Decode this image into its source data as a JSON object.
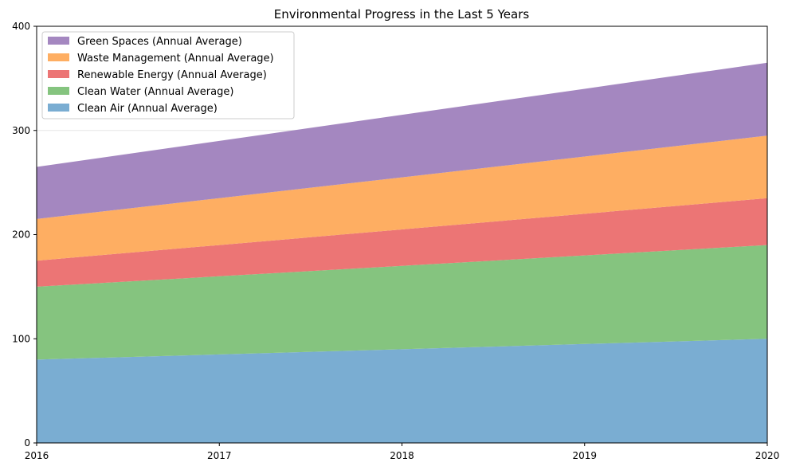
{
  "chart_data": {
    "type": "area",
    "stacked": true,
    "title": "Environmental Progress in the Last 5 Years",
    "xlabel": "",
    "ylabel": "",
    "x": [
      2016,
      2017,
      2018,
      2019,
      2020
    ],
    "x_tick_labels": [
      "2016",
      "2017",
      "2018",
      "2019",
      "2020"
    ],
    "y_ticks": [
      0,
      100,
      200,
      300,
      400
    ],
    "y_tick_labels": [
      "0",
      "100",
      "200",
      "300",
      "400"
    ],
    "xlim": [
      2016,
      2020
    ],
    "ylim": [
      0,
      400
    ],
    "grid": true,
    "legend_position": "top-left",
    "series": [
      {
        "name": "Clean Air (Annual Average)",
        "color": "#7aadd2",
        "values": [
          80,
          85,
          90,
          95,
          100
        ]
      },
      {
        "name": "Clean Water (Annual Average)",
        "color": "#85c47f",
        "values": [
          70,
          75,
          80,
          85,
          90
        ]
      },
      {
        "name": "Renewable Energy (Annual Average)",
        "color": "#ec7575",
        "values": [
          25,
          30,
          35,
          40,
          45
        ]
      },
      {
        "name": "Waste Management (Annual Average)",
        "color": "#feae62",
        "values": [
          40,
          45,
          50,
          55,
          60
        ]
      },
      {
        "name": "Green Spaces (Annual Average)",
        "color": "#a487c0",
        "values": [
          50,
          55,
          60,
          65,
          70
        ]
      }
    ]
  }
}
